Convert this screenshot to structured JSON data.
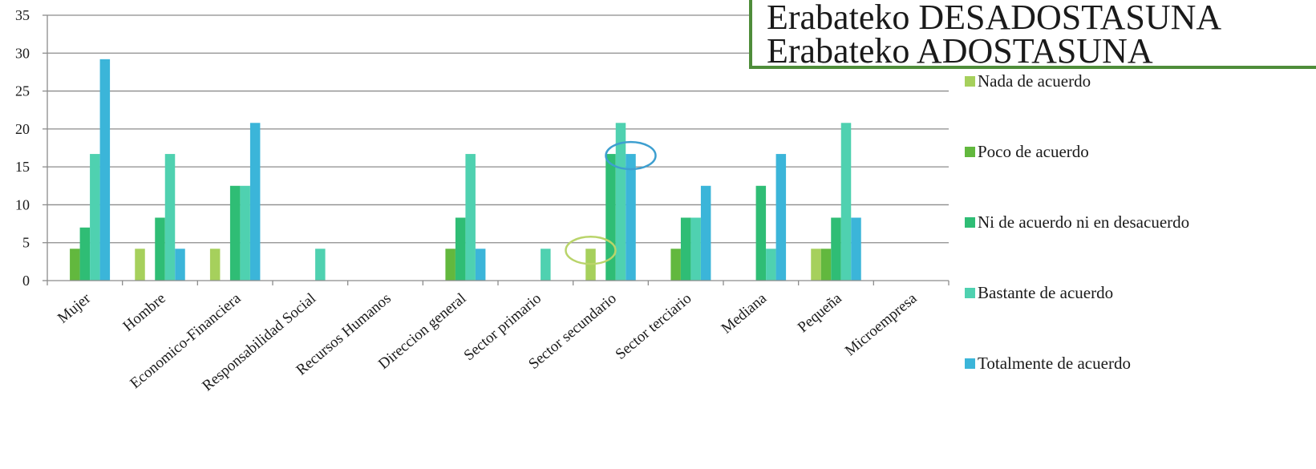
{
  "title_box": {
    "line1": "Erabateko DESADOSTASUNA",
    "line2": "Erabateko ADOSTASUNA"
  },
  "chart_data": {
    "type": "bar",
    "categories": [
      "Mujer",
      "Hombre",
      "Economico-Financiera",
      "Responsabilidad Social",
      "Recursos Humanos",
      "Direccion general",
      "Sector primario",
      "Sector secundario",
      "Sector terciario",
      "Mediana",
      "Pequeña",
      "Microempresa"
    ],
    "series": [
      {
        "name": "Nada de acuerdo",
        "color": "#a6d05c",
        "values": [
          0,
          4.2,
          4.2,
          0,
          0,
          0,
          0,
          4.2,
          0,
          0,
          4.2,
          0
        ]
      },
      {
        "name": "Poco de acuerdo",
        "color": "#62b83e",
        "values": [
          4.2,
          0,
          0,
          0,
          0,
          4.2,
          0,
          0,
          4.2,
          0,
          4.2,
          0
        ]
      },
      {
        "name": "Ni de acuerdo ni en desacuerdo",
        "color": "#2fbd75",
        "values": [
          7,
          8.3,
          12.5,
          0,
          0,
          8.3,
          0,
          16.7,
          8.3,
          12.5,
          8.3,
          0
        ]
      },
      {
        "name": "Bastante de acuerdo",
        "color": "#4fd1b0",
        "values": [
          16.7,
          16.7,
          12.5,
          4.2,
          0,
          16.7,
          4.2,
          20.8,
          8.3,
          4.2,
          20.8,
          0
        ]
      },
      {
        "name": "Totalmente de acuerdo",
        "color": "#3bb5d9",
        "values": [
          29.2,
          4.2,
          20.8,
          0,
          0,
          4.2,
          0,
          16.7,
          12.5,
          16.7,
          8.3,
          0
        ]
      }
    ],
    "ylim": [
      0,
      35
    ],
    "yticks": [
      0,
      5,
      10,
      15,
      20,
      25,
      30,
      35
    ],
    "grid": true,
    "legend": "right",
    "highlights": [
      {
        "category": "Sector secundario",
        "series": "Nada de acuerdo",
        "color": "#b9d46a"
      },
      {
        "category": "Sector secundario",
        "series": "Totalmente de acuerdo",
        "color": "#3d9fd0"
      }
    ]
  }
}
